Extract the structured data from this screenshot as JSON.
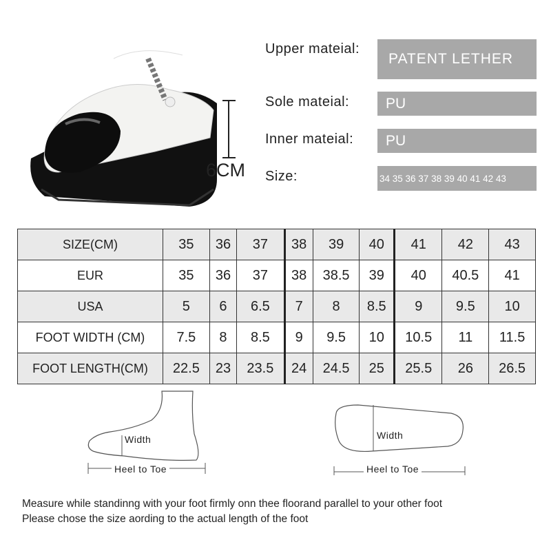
{
  "product": {
    "heel_height": "6CM"
  },
  "specs": [
    {
      "label": "Upper mateial:",
      "value": "PATENT LETHER"
    },
    {
      "label": "Sole mateial:",
      "value": "PU"
    },
    {
      "label": "Inner mateial:",
      "value": "PU"
    },
    {
      "label": "Size:",
      "value": "34 35 36 37 38 39 40 41 42 43"
    }
  ],
  "size_table": {
    "rows": [
      {
        "label": "SIZE(CM)",
        "values": [
          "35",
          "36",
          "37",
          "38",
          "39",
          "40",
          "41",
          "42",
          "43"
        ]
      },
      {
        "label": "EUR",
        "values": [
          "35",
          "36",
          "37",
          "38",
          "38.5",
          "39",
          "40",
          "40.5",
          "41"
        ]
      },
      {
        "label": "USA",
        "values": [
          "5",
          "6",
          "6.5",
          "7",
          "8",
          "8.5",
          "9",
          "9.5",
          "10"
        ]
      },
      {
        "label": "FOOT WIDTH (CM)",
        "values": [
          "7.5",
          "8",
          "8.5",
          "9",
          "9.5",
          "10",
          "10.5",
          "11",
          "11.5"
        ]
      },
      {
        "label": "FOOT LENGTH(CM)",
        "values": [
          "22.5",
          "23",
          "23.5",
          "24",
          "24.5",
          "25",
          "25.5",
          "26",
          "26.5"
        ]
      }
    ]
  },
  "diagrams": {
    "side": {
      "width_label": "Width",
      "length_label": "Heel to Toe"
    },
    "sole": {
      "width_label": "Width",
      "length_label": "Heel to Toe"
    }
  },
  "notes": [
    "Measure while standinng with your foot firmly onn thee floorand parallel to your other foot",
    "Please chose the size aording to the actual length of the foot"
  ],
  "colors": {
    "spec_box": "#a8a8a8",
    "table_shade": "#e9e9e9"
  }
}
